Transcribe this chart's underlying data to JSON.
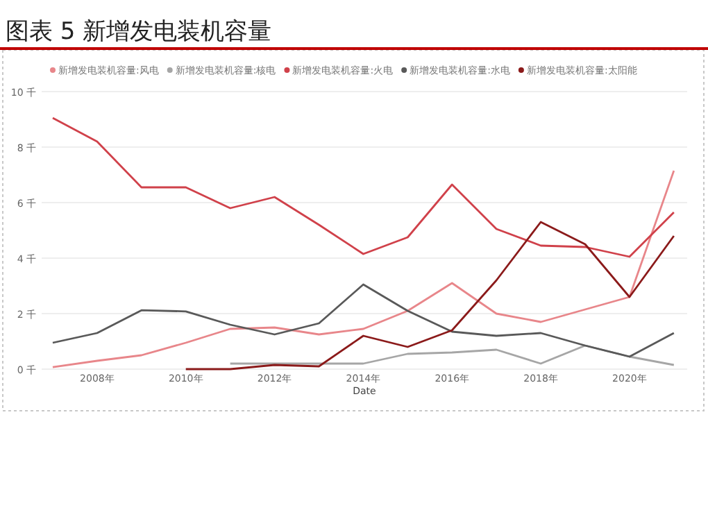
{
  "chart_data": {
    "type": "line",
    "title": "图表 5 新增发电装机容量",
    "xlabel": "Date",
    "legend": "top",
    "grid": "y",
    "marker": "none",
    "x": [
      2007,
      2008,
      2009,
      2010,
      2011,
      2012,
      2013,
      2014,
      2015,
      2016,
      2017,
      2018,
      2019,
      2020,
      2021
    ],
    "xlim": [
      2006.75,
      2021.3
    ],
    "ylim": [
      0,
      10
    ],
    "xticks": [
      {
        "value": 2008,
        "label": "2008年"
      },
      {
        "value": 2010,
        "label": "2010年"
      },
      {
        "value": 2012,
        "label": "2012年"
      },
      {
        "value": 2014,
        "label": "2014年"
      },
      {
        "value": 2016,
        "label": "2016年"
      },
      {
        "value": 2018,
        "label": "2018年"
      },
      {
        "value": 2020,
        "label": "2020年"
      }
    ],
    "yticks": [
      {
        "value": 0,
        "label": "0 千"
      },
      {
        "value": 2,
        "label": "2 千"
      },
      {
        "value": 4,
        "label": "4 千"
      },
      {
        "value": 6,
        "label": "6 千"
      },
      {
        "value": 8,
        "label": "8 千"
      },
      {
        "value": 10,
        "label": "10 千"
      }
    ],
    "series": [
      {
        "name": "新增发电装机容量:风电",
        "color": "#e8868a",
        "values": [
          0.07,
          0.3,
          0.5,
          0.95,
          1.45,
          1.5,
          1.25,
          1.45,
          2.1,
          3.1,
          2.0,
          1.7,
          2.15,
          2.6,
          7.15
        ]
      },
      {
        "name": "新增发电装机容量:核电",
        "color": "#a6a6a6",
        "values": [
          null,
          null,
          null,
          null,
          0.2,
          0.2,
          0.2,
          0.2,
          0.55,
          0.6,
          0.7,
          0.2,
          0.85,
          0.45,
          0.15
        ]
      },
      {
        "name": "新增发电装机容量:火电",
        "color": "#d0414a",
        "values": [
          9.05,
          8.2,
          6.55,
          6.55,
          5.8,
          6.2,
          5.2,
          4.15,
          4.75,
          6.65,
          5.05,
          4.45,
          4.4,
          4.05,
          5.65
        ]
      },
      {
        "name": "新增发电装机容量:水电",
        "color": "#595959",
        "values": [
          0.95,
          1.3,
          2.12,
          2.08,
          1.6,
          1.25,
          1.65,
          3.05,
          2.1,
          1.35,
          1.2,
          1.3,
          0.85,
          0.45,
          1.3
        ]
      },
      {
        "name": "新增发电装机容量:太阳能",
        "color": "#8b1a1a",
        "values": [
          null,
          null,
          null,
          0,
          0,
          0.15,
          0.1,
          1.2,
          0.8,
          1.4,
          3.2,
          5.3,
          4.5,
          2.6,
          4.8
        ]
      }
    ]
  }
}
